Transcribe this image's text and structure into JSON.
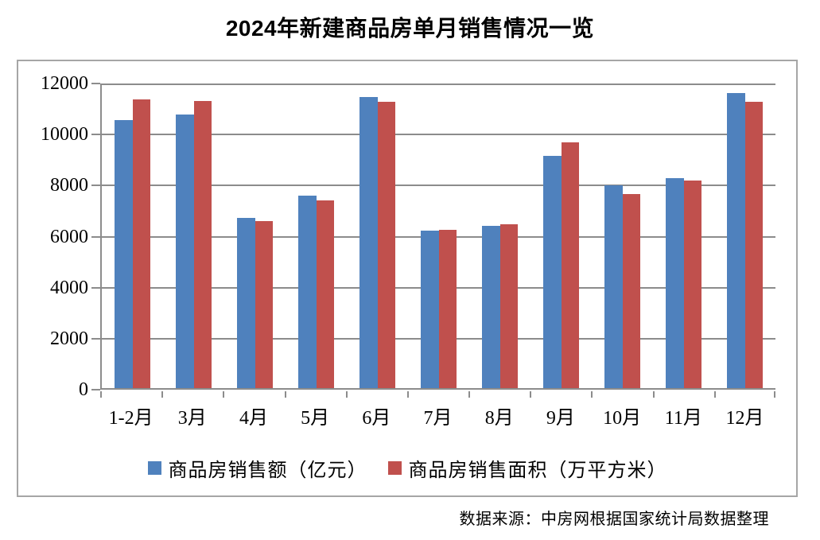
{
  "page": {
    "title": "2024年新建商品房单月销售情况一览",
    "source_note": "数据来源：中房网根据国家统计局数据整理"
  },
  "chart_data": {
    "type": "bar",
    "title": "2024年新建商品房单月销售情况一览",
    "categories": [
      "1-2月",
      "3月",
      "4月",
      "5月",
      "6月",
      "7月",
      "8月",
      "9月",
      "10月",
      "11月",
      "12月"
    ],
    "series": [
      {
        "name": "商品房销售额（亿元）",
        "color": "#4F81BD",
        "values": [
          10566,
          10789,
          6712,
          7598,
          11468,
          6197,
          6393,
          9157,
          7975,
          8270,
          11625
        ]
      },
      {
        "name": "商品房销售面积（万平方米）",
        "color": "#C0504D",
        "values": [
          11369,
          11299,
          6584,
          7390,
          11274,
          6233,
          6453,
          9682,
          7646,
          8188,
          11267
        ]
      }
    ],
    "xlabel": "",
    "ylabel": "",
    "ylim": [
      0,
      12000
    ],
    "yticks": [
      0,
      2000,
      4000,
      6000,
      8000,
      10000,
      12000
    ],
    "grid": true,
    "legend_position": "bottom",
    "axis_color": "#8c8c8c",
    "gridline_color": "#8c8c8c",
    "border_color": "#a6a6a6"
  }
}
